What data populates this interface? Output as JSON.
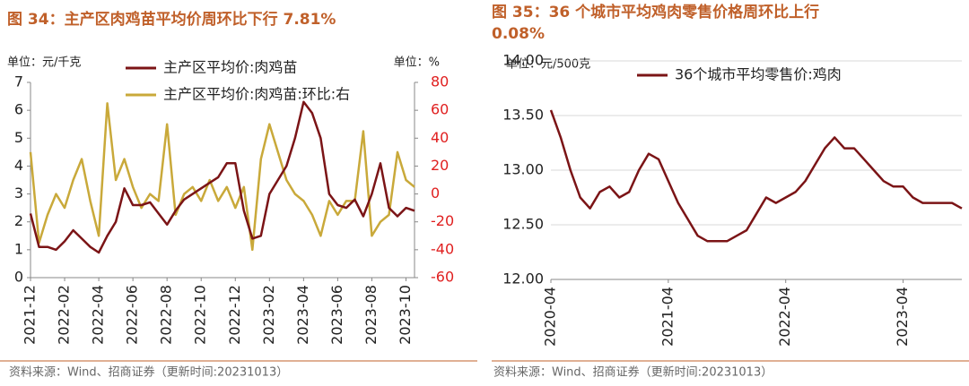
{
  "chart_data": [
    {
      "type": "line",
      "title": "图 34：主产区肉鸡苗平均价周环比下行 7.81%",
      "y_unit": "单位：元/千克",
      "y2_unit": "单位：%",
      "source": "资料来源：Wind、招商证券（更新时间:20231013）",
      "categories": [
        "2021-12",
        null,
        null,
        null,
        "2022-02",
        null,
        null,
        null,
        "2022-04",
        null,
        null,
        null,
        "2022-06",
        null,
        null,
        null,
        "2022-08",
        null,
        null,
        null,
        "2022-10",
        null,
        null,
        null,
        "2022-12",
        null,
        null,
        null,
        "2023-02",
        null,
        null,
        null,
        "2023-04",
        null,
        null,
        null,
        "2023-06",
        null,
        null,
        null,
        "2023-08",
        null,
        null,
        null,
        "2023-10",
        null
      ],
      "series": [
        {
          "name": "主产区平均价:肉鸡苗",
          "color": "#7b1416",
          "axis": "y",
          "values": [
            2.3,
            1.1,
            1.1,
            1.0,
            1.3,
            1.7,
            1.4,
            1.1,
            0.9,
            1.5,
            2.0,
            3.2,
            2.6,
            2.6,
            2.7,
            2.3,
            1.9,
            2.4,
            2.8,
            3.0,
            3.2,
            3.4,
            3.6,
            4.1,
            4.1,
            2.4,
            1.4,
            1.5,
            3.0,
            3.5,
            4.0,
            5.0,
            6.3,
            5.9,
            5.0,
            3.0,
            2.6,
            2.5,
            2.8,
            2.2,
            3.0,
            4.1,
            2.5,
            2.2,
            2.5,
            2.4
          ]
        },
        {
          "name": "主产区平均价:肉鸡苗:环比:右",
          "color": "#c9a93a",
          "axis": "y2",
          "values": [
            30,
            -35,
            -15,
            0,
            -10,
            10,
            25,
            -5,
            -30,
            65,
            10,
            25,
            5,
            -10,
            0,
            -5,
            50,
            -15,
            0,
            5,
            -5,
            10,
            -5,
            5,
            -10,
            5,
            -40,
            25,
            50,
            30,
            10,
            0,
            -5,
            -15,
            -30,
            -5,
            -15,
            -5,
            -5,
            45,
            -30,
            -20,
            -15,
            30,
            10,
            5
          ]
        }
      ],
      "ylim": [
        0,
        7
      ],
      "yticks": [
        0,
        1,
        2,
        3,
        4,
        5,
        6,
        7
      ],
      "y2lim": [
        -60,
        80
      ],
      "y2ticks": [
        -60,
        -40,
        -20,
        0,
        20,
        40,
        60,
        80
      ],
      "y2_color": "#e02020",
      "grid": false
    },
    {
      "type": "line",
      "title": "图 35：36 个城市平均鸡肉零售价格周环比上行 0.08%",
      "y_unit": "单位：元/500克",
      "source": "资料来源：Wind、招商证券（更新时间:20231013）",
      "categories": [
        "2020-04",
        null,
        null,
        null,
        null,
        null,
        null,
        null,
        null,
        null,
        null,
        null,
        "2021-04",
        null,
        null,
        null,
        null,
        null,
        null,
        null,
        null,
        null,
        null,
        null,
        "2022-04",
        null,
        null,
        null,
        null,
        null,
        null,
        null,
        null,
        null,
        null,
        null,
        "2023-04",
        null,
        null,
        null,
        null,
        null,
        null
      ],
      "series": [
        {
          "name": "36个城市平均零售价:鸡肉",
          "color": "#7b1416",
          "axis": "y",
          "values": [
            13.55,
            13.3,
            13.0,
            12.75,
            12.65,
            12.8,
            12.85,
            12.75,
            12.8,
            13.0,
            13.15,
            13.1,
            12.9,
            12.7,
            12.55,
            12.4,
            12.35,
            12.35,
            12.35,
            12.4,
            12.45,
            12.6,
            12.75,
            12.7,
            12.75,
            12.8,
            12.9,
            13.05,
            13.2,
            13.3,
            13.2,
            13.2,
            13.1,
            13.0,
            12.9,
            12.85,
            12.85,
            12.75,
            12.7,
            12.7,
            12.7,
            12.7,
            12.65
          ]
        }
      ],
      "ylim": [
        12,
        14
      ],
      "yticks": [
        {
          "value": 12,
          "label": "12.00"
        },
        {
          "value": 12.5,
          "label": "12.50"
        },
        {
          "value": 13,
          "label": "13.00"
        },
        {
          "value": 13.5,
          "label": "13.50"
        },
        {
          "value": 14,
          "label": "14.00"
        }
      ],
      "grid": true
    }
  ]
}
